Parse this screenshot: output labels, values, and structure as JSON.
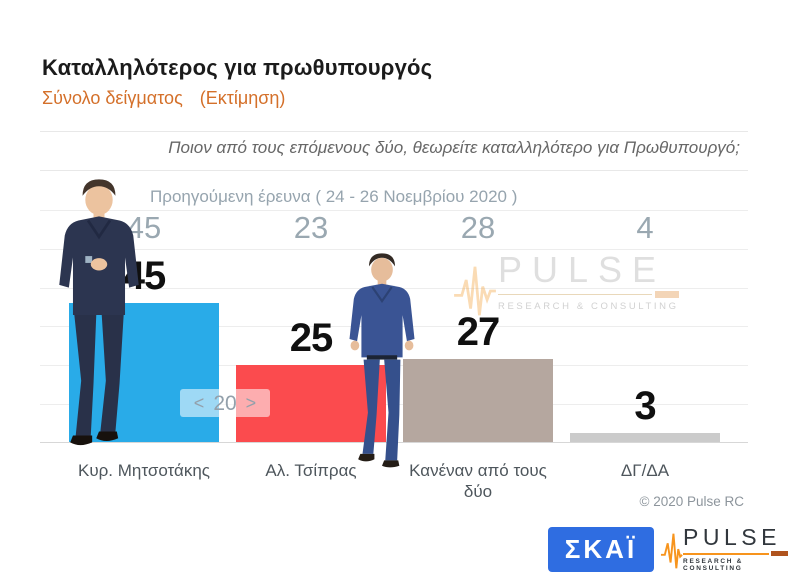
{
  "header": {
    "title": "Καταλληλότερος για πρωθυπουργός",
    "sample_label": "Σύνολο δείγματος",
    "estimate_label": "(Εκτίμηση)"
  },
  "question": "Ποιον από τους επόμενους δύο, θεωρείτε καταλληλότερο για Πρωθυπουργό;",
  "previous_survey_label": "Προηγούμενη έρευνα ( 24 - 26 Νοεμβρίου  2020 )",
  "chart_data": {
    "type": "bar",
    "categories": [
      "Κυρ. Μητσοτάκης",
      "Αλ. Τσίπρας",
      "Κανέναν από τους δύο",
      "ΔΓ/ΔΑ"
    ],
    "series": [
      {
        "name": "Εκτίμηση",
        "values": [
          45,
          25,
          27,
          3
        ]
      },
      {
        "name": "Προηγούμενη έρευνα",
        "values": [
          45,
          23,
          28,
          4
        ]
      }
    ],
    "bar_colors": [
      "#29abe8",
      "#fb4b4e",
      "#b5a79f",
      "#cbcbcb"
    ],
    "ylim": [
      0,
      75
    ],
    "grid": true,
    "value_labels": true,
    "legend_position": "none"
  },
  "pager": {
    "prev_label": "<",
    "page": "20",
    "next_label": ">"
  },
  "watermark": {
    "brand": "PULSE",
    "tagline": "RESEARCH & CONSULTING"
  },
  "photos": {
    "mitsotakis": "Κυρ. Μητσοτάκης",
    "tsipras": "Αλ. Τσίπρας"
  },
  "footer": {
    "copyright": "© 2020 Pulse RC",
    "skai_text": "ΣΚΑΪ",
    "pulse_brand": "PULSE",
    "pulse_tagline": "RESEARCH & CONSULTING"
  }
}
